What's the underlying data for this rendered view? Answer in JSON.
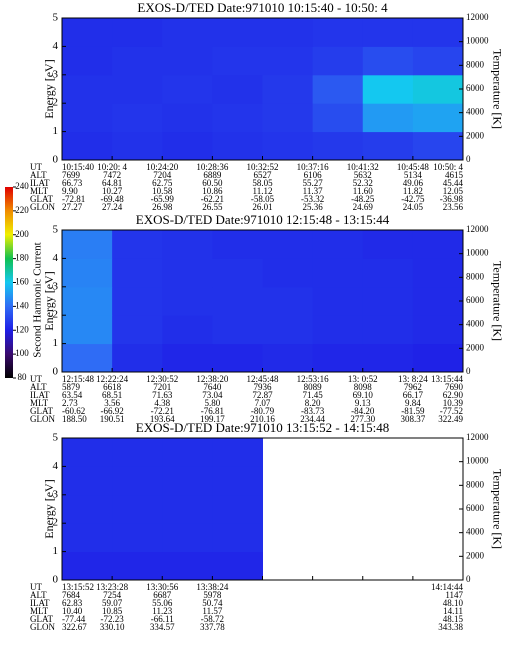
{
  "colorbar": {
    "label": "Second Harmonic Current",
    "lim": [
      80,
      240
    ],
    "ticks": [
      80,
      100,
      120,
      140,
      160,
      180,
      200,
      220,
      240
    ],
    "colors": [
      "#000000",
      "#3a0a6e",
      "#1e1ee6",
      "#2f6cf5",
      "#14c8f0",
      "#10c050",
      "#f0f000",
      "#f08c00",
      "#e00000"
    ]
  },
  "chart_data": [
    {
      "type": "heatmap",
      "title": "EXOS-D/TED  Date:971010  10:15:40 - 10:50: 4",
      "ylabel": "Energy [eV]",
      "y2label": "Temperature [K]",
      "ylim": [
        0,
        5
      ],
      "yticks": [
        0,
        1,
        2,
        3,
        4,
        5
      ],
      "y2lim": [
        0,
        12000
      ],
      "y2ticks": [
        0,
        2000,
        4000,
        6000,
        8000,
        10000,
        12000
      ],
      "z": [
        [
          124,
          125,
          124,
          125,
          126,
          127,
          128,
          130
        ],
        [
          125,
          126,
          125,
          126,
          127,
          132,
          150,
          152
        ],
        [
          125,
          125,
          126,
          125,
          127,
          135,
          160,
          162
        ],
        [
          124,
          125,
          125,
          126,
          126,
          128,
          132,
          130
        ],
        [
          124,
          124,
          125,
          125,
          125,
          126,
          126,
          126
        ]
      ],
      "orbit": [
        {
          "name": "UT",
          "values": [
            "10:15:40",
            "10:20: 4",
            "10:24:20",
            "10:28:36",
            "10:32:52",
            "10:37:16",
            "10:41:32",
            "10:45:48",
            "10:50: 4"
          ]
        },
        {
          "name": "ALT",
          "values": [
            "7699",
            "7472",
            "7204",
            "6889",
            "6527",
            "6106",
            "5632",
            "5134",
            "4615"
          ]
        },
        {
          "name": "ILAT",
          "values": [
            "66.73",
            "64.81",
            "62.75",
            "60.50",
            "58.05",
            "55.27",
            "52.32",
            "49.06",
            "45.44"
          ]
        },
        {
          "name": "MLT",
          "values": [
            "9.90",
            "10.27",
            "10.58",
            "10.86",
            "11.12",
            "11.37",
            "11.60",
            "11.82",
            "12.05"
          ]
        },
        {
          "name": "GLAT",
          "values": [
            "-72.81",
            "-69.48",
            "-65.99",
            "-62.21",
            "-58.05",
            "-53.32",
            "-48.25",
            "-42.75",
            "-36.98"
          ]
        },
        {
          "name": "GLON",
          "values": [
            "27.27",
            "27.24",
            "26.98",
            "26.55",
            "26.01",
            "25.36",
            "24.69",
            "24.05",
            "23.56"
          ]
        }
      ]
    },
    {
      "type": "heatmap",
      "title": "EXOS-D/TED  Date:971010  12:15:48 - 13:15:44",
      "ylabel": "Energy [eV]",
      "y2label": "Temperature [K]",
      "ylim": [
        0,
        5
      ],
      "yticks": [
        0,
        1,
        2,
        3,
        4,
        5
      ],
      "y2lim": [
        0,
        12000
      ],
      "y2ticks": [
        0,
        2000,
        4000,
        6000,
        8000,
        10000,
        12000
      ],
      "z": [
        [
          140,
          124,
          122,
          122,
          123,
          122,
          122,
          121
        ],
        [
          146,
          126,
          124,
          125,
          125,
          124,
          124,
          123
        ],
        [
          146,
          126,
          125,
          125,
          125,
          124,
          124,
          123
        ],
        [
          145,
          126,
          125,
          125,
          124,
          124,
          124,
          123
        ],
        [
          144,
          126,
          125,
          124,
          124,
          124,
          123,
          123
        ]
      ],
      "orbit": [
        {
          "name": "UT",
          "values": [
            "12:15:48",
            "12:22:24",
            "12:30:52",
            "12:38:20",
            "12:45:48",
            "12:53:16",
            "13: 0:52",
            "13: 8:24",
            "13:15:44"
          ]
        },
        {
          "name": "ALT",
          "values": [
            "5879",
            "6618",
            "7201",
            "7640",
            "7936",
            "8089",
            "8098",
            "7962",
            "7690"
          ]
        },
        {
          "name": "ILAT",
          "values": [
            "63.54",
            "68.51",
            "71.63",
            "73.04",
            "72.87",
            "71.45",
            "69.10",
            "66.17",
            "62.90"
          ]
        },
        {
          "name": "MLT",
          "values": [
            "2.73",
            "3.56",
            "4.38",
            "5.80",
            "7.07",
            "8.20",
            "9.13",
            "9.84",
            "10.39"
          ]
        },
        {
          "name": "GLAT",
          "values": [
            "-60.62",
            "-66.92",
            "-72.21",
            "-76.81",
            "-80.79",
            "-83.73",
            "-84.20",
            "-81.59",
            "-77.52"
          ]
        },
        {
          "name": "GLON",
          "values": [
            "188.50",
            "190.51",
            "193.64",
            "199.17",
            "210.16",
            "234.44",
            "277.30",
            "308.37",
            "322.49"
          ]
        }
      ]
    },
    {
      "type": "heatmap",
      "title": "EXOS-D/TED  Date:971010  13:15:52 - 14:15:48",
      "ylabel": "Energy [eV]",
      "y2label": "Temperature [K]",
      "ylim": [
        0,
        5
      ],
      "yticks": [
        0,
        1,
        2,
        3,
        4,
        5
      ],
      "y2lim": [
        0,
        12000
      ],
      "y2ticks": [
        0,
        2000,
        4000,
        6000,
        8000,
        10000,
        12000
      ],
      "z": [
        [
          122,
          122,
          122,
          122,
          null,
          null,
          null,
          null
        ],
        [
          124,
          124,
          124,
          124,
          null,
          null,
          null,
          null
        ],
        [
          124,
          124,
          124,
          124,
          null,
          null,
          null,
          null
        ],
        [
          124,
          124,
          124,
          124,
          null,
          null,
          null,
          null
        ],
        [
          124,
          124,
          124,
          124,
          null,
          null,
          null,
          null
        ]
      ],
      "orbit": [
        {
          "name": "UT",
          "values": [
            "13:15:52",
            "13:23:28",
            "13:30:56",
            "13:38:24",
            null,
            null,
            null,
            null,
            "14:14:44"
          ]
        },
        {
          "name": "ALT",
          "values": [
            "7684",
            "7254",
            "6687",
            "5978",
            null,
            null,
            null,
            null,
            "1147"
          ]
        },
        {
          "name": "ILAT",
          "values": [
            "62.83",
            "59.07",
            "55.06",
            "50.74",
            null,
            null,
            null,
            null,
            "48.10"
          ]
        },
        {
          "name": "MLT",
          "values": [
            "10.40",
            "10.85",
            "11.23",
            "11.57",
            null,
            null,
            null,
            null,
            "14.11"
          ]
        },
        {
          "name": "GLAT",
          "values": [
            "-77.44",
            "-72.23",
            "-66.11",
            "-58.72",
            null,
            null,
            null,
            null,
            "48.15"
          ]
        },
        {
          "name": "GLON",
          "values": [
            "322.67",
            "330.10",
            "334.57",
            "337.78",
            null,
            null,
            null,
            null,
            "343.38"
          ]
        }
      ]
    }
  ]
}
